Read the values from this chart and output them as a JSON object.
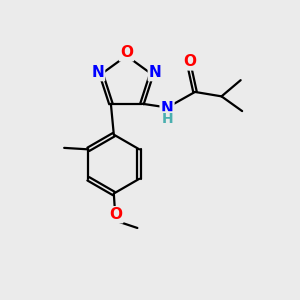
{
  "bg_color": "#ebebeb",
  "bond_color": "#000000",
  "bond_width": 1.6,
  "atom_colors": {
    "O": "#ff0000",
    "N": "#0000ff",
    "C": "#000000",
    "H": "#4aafaf"
  },
  "font_size": 10,
  "dbo": 0.06
}
